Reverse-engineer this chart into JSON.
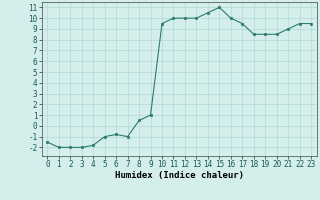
{
  "x": [
    0,
    1,
    2,
    3,
    4,
    5,
    6,
    7,
    8,
    9,
    10,
    11,
    12,
    13,
    14,
    15,
    16,
    17,
    18,
    19,
    20,
    21,
    22,
    23
  ],
  "y": [
    -1.5,
    -2.0,
    -2.0,
    -2.0,
    -1.8,
    -1.0,
    -0.8,
    -1.0,
    0.5,
    1.0,
    9.5,
    10.0,
    10.0,
    10.0,
    10.5,
    11.0,
    10.0,
    9.5,
    8.5,
    8.5,
    8.5,
    9.0,
    9.5,
    9.5
  ],
  "xlabel": "Humidex (Indice chaleur)",
  "ylim": [
    -2.8,
    11.5
  ],
  "xlim": [
    -0.5,
    23.5
  ],
  "yticks": [
    -2,
    -1,
    0,
    1,
    2,
    3,
    4,
    5,
    6,
    7,
    8,
    9,
    10,
    11
  ],
  "xticks": [
    0,
    1,
    2,
    3,
    4,
    5,
    6,
    7,
    8,
    9,
    10,
    11,
    12,
    13,
    14,
    15,
    16,
    17,
    18,
    19,
    20,
    21,
    22,
    23
  ],
  "line_color": "#2d7a72",
  "marker_color": "#2d7a72",
  "bg_color": "#d4eeeb",
  "grid_color": "#b0d8d4",
  "tick_fontsize": 5.5,
  "xlabel_fontsize": 6.5
}
